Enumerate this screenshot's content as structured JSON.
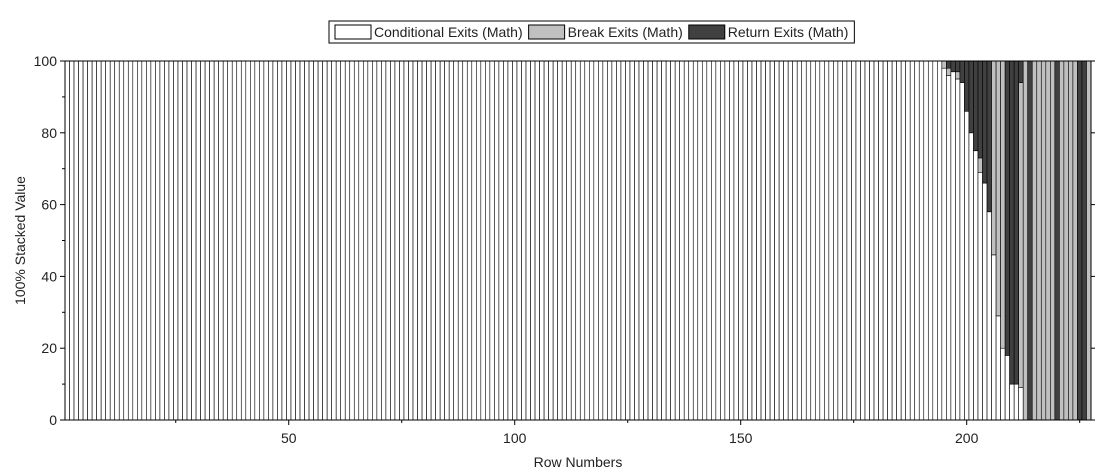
{
  "chart_data": {
    "type": "bar",
    "stacking": "100%",
    "xlabel": "Row Numbers",
    "ylabel": "100% Stacked Value",
    "xlim": [
      1,
      227
    ],
    "ylim": [
      0,
      100
    ],
    "x_ticks": [
      50,
      100,
      150,
      200
    ],
    "y_ticks": [
      0,
      20,
      40,
      60,
      80,
      100
    ],
    "grid": false,
    "legend_position": "top-center",
    "n_rows": 227,
    "series": [
      {
        "name": "Conditional Exits (Math)",
        "color": "#ffffff"
      },
      {
        "name": "Break Exits (Math)",
        "color": "#c0c0c0"
      },
      {
        "name": "Return Exits (Math)",
        "color": "#404040"
      }
    ],
    "default_row": [
      100,
      0,
      0
    ],
    "rows": {
      "195": [
        98,
        2,
        0
      ],
      "196": [
        96,
        2,
        2
      ],
      "197": [
        97,
        0,
        3
      ],
      "198": [
        95,
        2,
        3
      ],
      "199": [
        94,
        0,
        6
      ],
      "200": [
        86,
        0,
        14
      ],
      "201": [
        80,
        0,
        20
      ],
      "202": [
        75,
        0,
        25
      ],
      "203": [
        69,
        4,
        27
      ],
      "204": [
        66,
        0,
        34
      ],
      "205": [
        58,
        0,
        42
      ],
      "206": [
        46,
        54,
        0
      ],
      "207": [
        29,
        71,
        0
      ],
      "208": [
        20,
        80,
        0
      ],
      "209": [
        18,
        0,
        82
      ],
      "210": [
        10,
        0,
        90
      ],
      "211": [
        10,
        0,
        90
      ],
      "212": [
        9,
        85,
        6
      ],
      "213": [
        0,
        100,
        0
      ],
      "214": [
        0,
        0,
        100
      ],
      "215": [
        0,
        100,
        0
      ],
      "216": [
        0,
        100,
        0
      ],
      "217": [
        0,
        100,
        0
      ],
      "218": [
        0,
        100,
        0
      ],
      "219": [
        0,
        100,
        0
      ],
      "220": [
        0,
        0,
        100
      ],
      "221": [
        0,
        100,
        0
      ],
      "222": [
        0,
        100,
        0
      ],
      "223": [
        0,
        100,
        0
      ],
      "224": [
        0,
        100,
        0
      ],
      "225": [
        0,
        0,
        100
      ],
      "226": [
        0,
        0,
        100
      ],
      "227": [
        0,
        100,
        0
      ]
    }
  }
}
